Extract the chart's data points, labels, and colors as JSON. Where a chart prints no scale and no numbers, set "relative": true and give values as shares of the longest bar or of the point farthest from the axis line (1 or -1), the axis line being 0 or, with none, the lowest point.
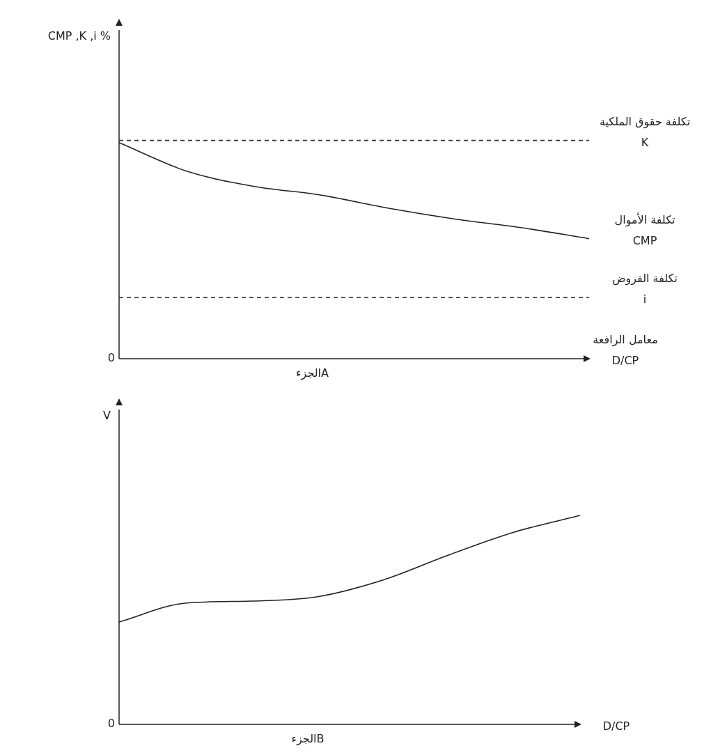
{
  "chart_data": [
    {
      "type": "line",
      "relative": true,
      "ylabel": "CMP ,K ,i %",
      "xlabel": "معامل الرافعة\nD/CP",
      "marker": "none",
      "annotations": [
        "0",
        "الجزءA"
      ],
      "categories": [
        null,
        null,
        null,
        null,
        null,
        null,
        null,
        null
      ],
      "series": [
        {
          "name": "تكلفة حقوق الملكية\nK",
          "color": "#333333",
          "line_style": "dashed",
          "values": [
            1,
            1,
            1,
            1,
            1,
            1,
            1,
            1
          ]
        },
        {
          "name": "تكلفة الأموال\nCMP",
          "color": "#222222",
          "line_style": "solid",
          "values": [
            0.99,
            0.86,
            0.79,
            0.75,
            0.69,
            0.64,
            0.6,
            0.55
          ]
        },
        {
          "name": "تكلفة القروض\ni",
          "color": "#333333",
          "line_style": "dashed",
          "values": [
            0.28,
            0.28,
            0.28,
            0.28,
            0.28,
            0.28,
            0.28,
            0.28
          ]
        }
      ]
    },
    {
      "type": "line",
      "relative": true,
      "ylabel": "V",
      "xlabel": "D/CP",
      "marker": "none",
      "annotations": [
        "0",
        "الجزءB"
      ],
      "categories": [
        null,
        null,
        null,
        null,
        null,
        null,
        null,
        null
      ],
      "series": [
        {
          "color": "#222222",
          "line_style": "solid",
          "values": [
            0.49,
            0.58,
            0.59,
            0.61,
            0.69,
            0.81,
            0.92,
            1
          ]
        }
      ]
    }
  ]
}
